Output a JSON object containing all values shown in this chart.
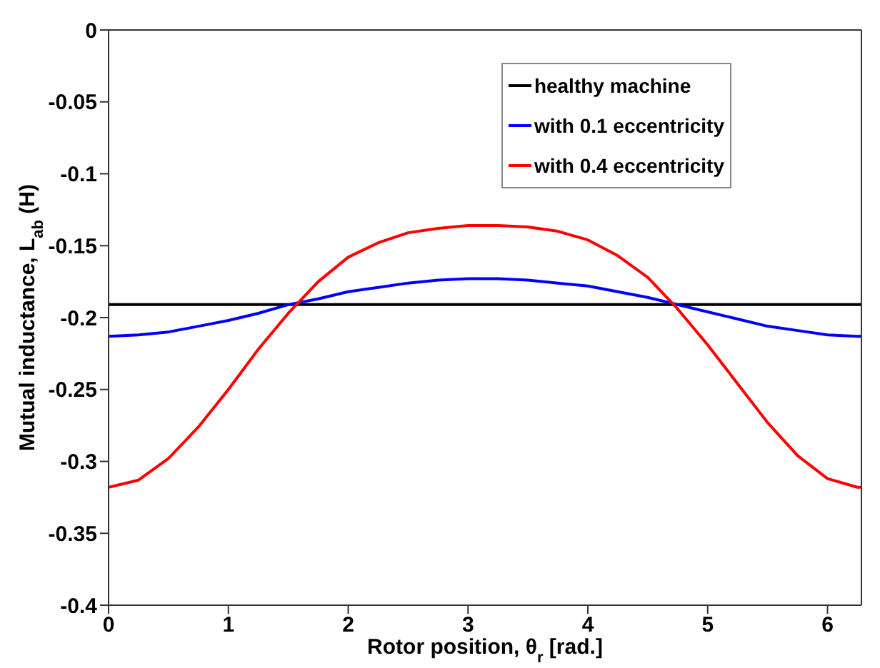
{
  "chart_data": {
    "type": "line",
    "xlabel": "Rotor position, θ$_{r}$ [rad.]",
    "ylabel": "Mutual inductance, L$_{ab}$ (H)",
    "xlim": [
      0,
      6.2832
    ],
    "xticks": [
      0,
      1,
      2,
      3,
      4,
      5,
      6
    ],
    "ylim": [
      -0.4,
      0
    ],
    "yticks": [
      -0.4,
      -0.35,
      -0.3,
      -0.25,
      -0.2,
      -0.15,
      -0.1,
      -0.05,
      0
    ],
    "grid": false,
    "legend": "top right",
    "marker": "none",
    "line_style": "solid",
    "series": [
      {
        "name": "healthy machine",
        "color": "#000000",
        "x": [
          0,
          6.2832
        ],
        "values": [
          -0.191,
          -0.191
        ]
      },
      {
        "name": "with 0.1 eccentricity",
        "color": "#0000ff",
        "x": [
          0,
          0.25,
          0.5,
          0.75,
          1,
          1.25,
          1.5,
          1.75,
          2,
          2.25,
          2.5,
          2.75,
          3,
          3.25,
          3.5,
          3.75,
          4,
          4.25,
          4.5,
          4.75,
          5,
          5.25,
          5.5,
          5.75,
          6,
          6.25,
          6.2832
        ],
        "values": [
          -0.213,
          -0.212,
          -0.21,
          -0.206,
          -0.202,
          -0.197,
          -0.191,
          -0.187,
          -0.182,
          -0.179,
          -0.176,
          -0.174,
          -0.173,
          -0.173,
          -0.174,
          -0.176,
          -0.178,
          -0.182,
          -0.186,
          -0.191,
          -0.196,
          -0.201,
          -0.206,
          -0.209,
          -0.212,
          -0.213,
          -0.213
        ]
      },
      {
        "name": "with 0.4 eccentricity",
        "color": "#ff0000",
        "x": [
          0,
          0.25,
          0.5,
          0.75,
          1,
          1.25,
          1.5,
          1.75,
          2,
          2.25,
          2.5,
          2.75,
          3,
          3.25,
          3.5,
          3.75,
          4,
          4.25,
          4.5,
          4.75,
          5,
          5.25,
          5.5,
          5.75,
          6,
          6.25,
          6.2832
        ],
        "values": [
          -0.318,
          -0.313,
          -0.298,
          -0.276,
          -0.25,
          -0.222,
          -0.197,
          -0.175,
          -0.158,
          -0.148,
          -0.141,
          -0.138,
          -0.136,
          -0.136,
          -0.137,
          -0.14,
          -0.146,
          -0.157,
          -0.172,
          -0.194,
          -0.219,
          -0.246,
          -0.273,
          -0.296,
          -0.312,
          -0.318,
          -0.318
        ]
      }
    ]
  }
}
